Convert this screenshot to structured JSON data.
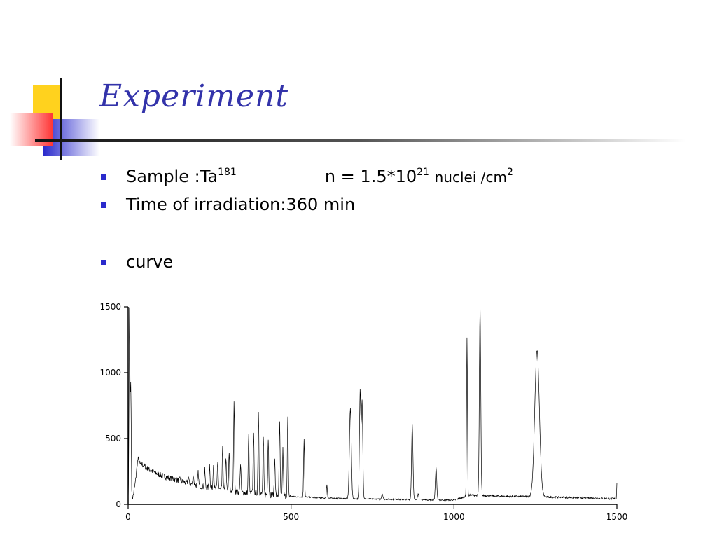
{
  "slide": {
    "title": "Experiment",
    "bullets": {
      "sample_label": "Sample :Ta",
      "sample_mass": "181",
      "density_label": "n = 1.5*10",
      "density_exp": "21",
      "density_unit": "nuclei /cm",
      "density_unit_exp": "2",
      "irradiation": "Time of irradiation:360 min",
      "curve": "curve"
    }
  },
  "colors": {
    "title": "#3333aa",
    "bullet": "#2a2acc",
    "deco_yellow": "#ffd21e",
    "deco_red": "#ff3333",
    "deco_blue": "#2a2acc"
  },
  "chart_data": {
    "type": "line",
    "title": "",
    "xlabel": "",
    "ylabel": "",
    "xlim": [
      0,
      1500
    ],
    "ylim": [
      0,
      1500
    ],
    "x_ticks": [
      0,
      500,
      1000,
      1500
    ],
    "y_ticks": [
      0,
      500,
      1000,
      1500
    ],
    "x_tick_labels": [
      "0",
      "500",
      "1000",
      "1500"
    ],
    "y_tick_labels": [
      "0",
      "500",
      "1000",
      "1500"
    ],
    "grid": false,
    "legend": "none",
    "baseline": [
      [
        0,
        0
      ],
      [
        5,
        0
      ],
      [
        15,
        60
      ],
      [
        25,
        200
      ],
      [
        40,
        310
      ],
      [
        60,
        270
      ],
      [
        100,
        220
      ],
      [
        150,
        185
      ],
      [
        200,
        150
      ],
      [
        250,
        125
      ],
      [
        300,
        105
      ],
      [
        350,
        90
      ],
      [
        400,
        80
      ],
      [
        450,
        70
      ],
      [
        500,
        60
      ],
      [
        550,
        55
      ],
      [
        600,
        48
      ],
      [
        650,
        45
      ],
      [
        700,
        42
      ],
      [
        800,
        38
      ],
      [
        900,
        35
      ],
      [
        1000,
        32
      ],
      [
        1050,
        70
      ],
      [
        1100,
        65
      ],
      [
        1150,
        62
      ],
      [
        1200,
        60
      ],
      [
        1250,
        58
      ],
      [
        1300,
        55
      ],
      [
        1350,
        52
      ],
      [
        1400,
        50
      ],
      [
        1450,
        45
      ],
      [
        1500,
        42
      ]
    ],
    "peaks": [
      {
        "x": 4,
        "height": 1480,
        "width": 2
      },
      {
        "x": 8,
        "height": 900,
        "width": 2
      },
      {
        "x": 30,
        "height": 340,
        "width": 5
      },
      {
        "x": 160,
        "height": 200,
        "width": 2
      },
      {
        "x": 185,
        "height": 210,
        "width": 2
      },
      {
        "x": 200,
        "height": 230,
        "width": 2
      },
      {
        "x": 215,
        "height": 240,
        "width": 2
      },
      {
        "x": 235,
        "height": 260,
        "width": 2
      },
      {
        "x": 250,
        "height": 300,
        "width": 2
      },
      {
        "x": 262,
        "height": 320,
        "width": 2
      },
      {
        "x": 275,
        "height": 330,
        "width": 2
      },
      {
        "x": 290,
        "height": 420,
        "width": 2
      },
      {
        "x": 300,
        "height": 360,
        "width": 2
      },
      {
        "x": 310,
        "height": 390,
        "width": 2
      },
      {
        "x": 325,
        "height": 790,
        "width": 2
      },
      {
        "x": 345,
        "height": 310,
        "width": 2
      },
      {
        "x": 370,
        "height": 530,
        "width": 2
      },
      {
        "x": 385,
        "height": 560,
        "width": 2
      },
      {
        "x": 400,
        "height": 710,
        "width": 2
      },
      {
        "x": 415,
        "height": 500,
        "width": 2
      },
      {
        "x": 430,
        "height": 510,
        "width": 2
      },
      {
        "x": 450,
        "height": 350,
        "width": 2
      },
      {
        "x": 465,
        "height": 630,
        "width": 2
      },
      {
        "x": 475,
        "height": 420,
        "width": 2
      },
      {
        "x": 490,
        "height": 650,
        "width": 2
      },
      {
        "x": 540,
        "height": 500,
        "width": 2
      },
      {
        "x": 610,
        "height": 150,
        "width": 2
      },
      {
        "x": 682,
        "height": 730,
        "width": 4
      },
      {
        "x": 712,
        "height": 860,
        "width": 3
      },
      {
        "x": 718,
        "height": 780,
        "width": 3
      },
      {
        "x": 780,
        "height": 80,
        "width": 3
      },
      {
        "x": 872,
        "height": 610,
        "width": 3
      },
      {
        "x": 890,
        "height": 80,
        "width": 3
      },
      {
        "x": 945,
        "height": 280,
        "width": 3
      },
      {
        "x": 1040,
        "height": 1260,
        "width": 2
      },
      {
        "x": 1080,
        "height": 1500,
        "width": 3
      },
      {
        "x": 1255,
        "height": 1170,
        "width": 10
      },
      {
        "x": 1500,
        "height": 170,
        "width": 1
      }
    ]
  }
}
